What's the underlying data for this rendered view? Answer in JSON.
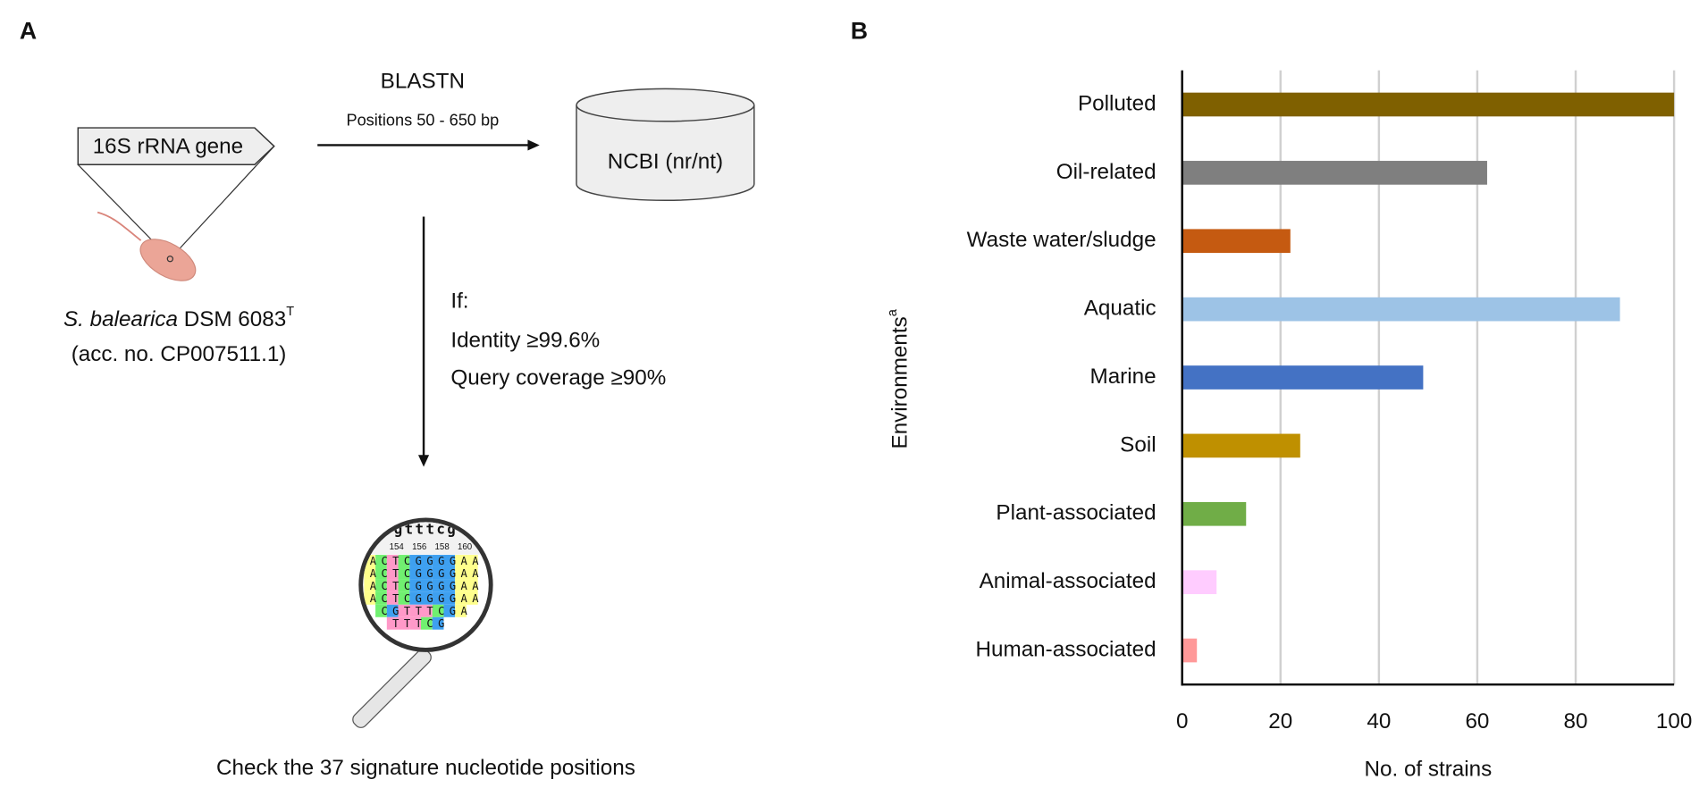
{
  "panel_a": {
    "label": "A",
    "gene": "16S rRNA gene",
    "strain_species": "S. balearica",
    "strain_name": " DSM 6083",
    "strain_sup": "T",
    "accession": "(acc. no. CP007511.1)",
    "method": "BLASTN",
    "positions": "Positions 50 - 650 bp",
    "database": "NCBI (nr/nt)",
    "condition_if": "If:",
    "condition_identity": "Identity ≥99.6%",
    "condition_coverage": "Query coverage ≥90%",
    "alignment": {
      "header": "gtttcg",
      "positions": [
        "154",
        "156",
        "158",
        "160"
      ],
      "rows": [
        "ACTCGGGGAA",
        "ACTCGGGGAA",
        "ACTCGGGGAA",
        "ACTCGGGGAA",
        "CGTTTCGA",
        "TTTCG"
      ]
    },
    "caption": "Check the 37 signature nucleotide positions"
  },
  "chart_data": {
    "type": "barh",
    "panel_label": "B",
    "x_label": "No. of strains",
    "y_label": "Environments",
    "y_label_sup": "a",
    "categories": [
      "Polluted",
      "Oil-related",
      "Waste water/sludge",
      "Aquatic",
      "Marine",
      "Soil",
      "Plant-associated",
      "Animal-associated",
      "Human-associated"
    ],
    "values": [
      100,
      62,
      22,
      89,
      49,
      24,
      13,
      7,
      3
    ],
    "colors": [
      "#7f6000",
      "#7f7f7f",
      "#c55a11",
      "#9dc3e6",
      "#4472c4",
      "#bf9000",
      "#70ad47",
      "#ffccff",
      "#ff9999"
    ],
    "xlim": [
      0,
      100
    ],
    "xticks": [
      0,
      20,
      40,
      60,
      80,
      100
    ],
    "grid": true
  }
}
